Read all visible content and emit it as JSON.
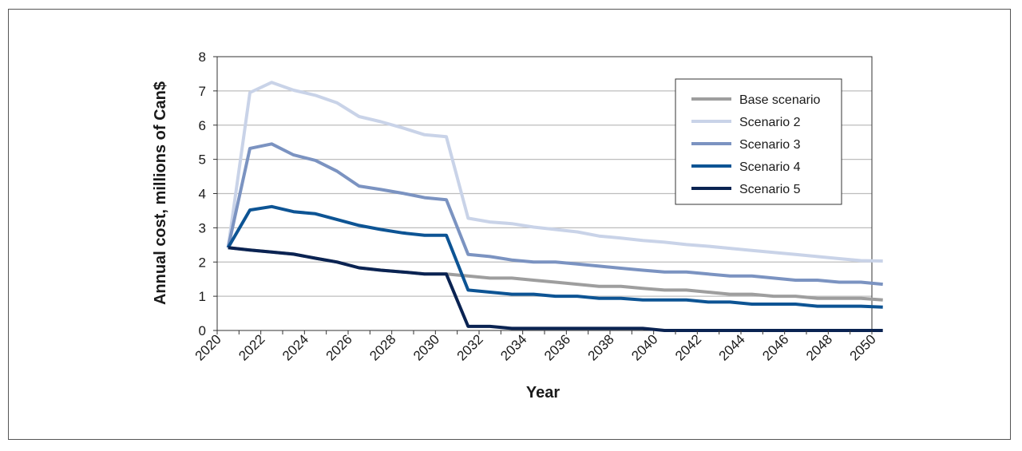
{
  "chart_data": {
    "type": "line",
    "title": "",
    "xlabel": "Year",
    "ylabel": "Annual cost, millions of Can$",
    "xlim": [
      2020,
      2050
    ],
    "ylim": [
      0,
      8
    ],
    "x_ticks": [
      "2020",
      "2022",
      "2024",
      "2026",
      "2028",
      "2030",
      "2032",
      "2034",
      "2036",
      "2038",
      "2040",
      "2042",
      "2044",
      "2046",
      "2048",
      "2050"
    ],
    "y_ticks": [
      "0",
      "1",
      "2",
      "3",
      "4",
      "5",
      "6",
      "7",
      "8"
    ],
    "grid": "horizontal",
    "legend_position": "top-right",
    "x": [
      2020,
      2021,
      2022,
      2023,
      2024,
      2025,
      2026,
      2027,
      2028,
      2029,
      2030,
      2031,
      2032,
      2033,
      2034,
      2035,
      2036,
      2037,
      2038,
      2039,
      2040,
      2041,
      2042,
      2043,
      2044,
      2045,
      2046,
      2047,
      2048,
      2049,
      2050
    ],
    "series": [
      {
        "name": "Base scenario",
        "color": "#9e9e9e",
        "values": [
          2.42,
          2.35,
          2.29,
          2.23,
          2.11,
          2.0,
          1.83,
          1.76,
          1.71,
          1.65,
          1.65,
          1.59,
          1.53,
          1.53,
          1.47,
          1.41,
          1.35,
          1.29,
          1.29,
          1.23,
          1.18,
          1.18,
          1.12,
          1.06,
          1.06,
          1.0,
          1.0,
          0.94,
          0.94,
          0.94,
          0.89
        ]
      },
      {
        "name": "Scenario 2",
        "color": "#c9d3e8",
        "values": [
          2.42,
          6.95,
          7.25,
          7.02,
          6.87,
          6.65,
          6.25,
          6.1,
          5.92,
          5.72,
          5.66,
          3.28,
          3.17,
          3.12,
          3.02,
          2.95,
          2.88,
          2.76,
          2.7,
          2.63,
          2.58,
          2.51,
          2.46,
          2.4,
          2.34,
          2.28,
          2.22,
          2.16,
          2.1,
          2.04,
          2.03
        ]
      },
      {
        "name": "Scenario 3",
        "color": "#7b93c1",
        "values": [
          2.42,
          5.32,
          5.45,
          5.13,
          4.97,
          4.65,
          4.22,
          4.12,
          4.01,
          3.88,
          3.82,
          2.22,
          2.16,
          2.06,
          2.0,
          2.0,
          1.94,
          1.88,
          1.82,
          1.76,
          1.71,
          1.71,
          1.65,
          1.59,
          1.59,
          1.53,
          1.47,
          1.47,
          1.41,
          1.41,
          1.35
        ]
      },
      {
        "name": "Scenario 4",
        "color": "#0d5494",
        "values": [
          2.42,
          3.52,
          3.62,
          3.47,
          3.41,
          3.24,
          3.07,
          2.95,
          2.85,
          2.78,
          2.78,
          1.18,
          1.12,
          1.06,
          1.06,
          1.0,
          1.0,
          0.94,
          0.94,
          0.89,
          0.89,
          0.89,
          0.83,
          0.83,
          0.77,
          0.77,
          0.77,
          0.71,
          0.71,
          0.71,
          0.68
        ]
      },
      {
        "name": "Scenario 5",
        "color": "#0a2352",
        "values": [
          2.42,
          2.35,
          2.29,
          2.23,
          2.11,
          2.0,
          1.83,
          1.76,
          1.71,
          1.65,
          1.65,
          0.12,
          0.12,
          0.06,
          0.06,
          0.06,
          0.06,
          0.06,
          0.06,
          0.06,
          0.0,
          0.0,
          0.0,
          0.0,
          0.0,
          0.0,
          0.0,
          0.0,
          0.0,
          0.0,
          0.0
        ]
      }
    ]
  }
}
